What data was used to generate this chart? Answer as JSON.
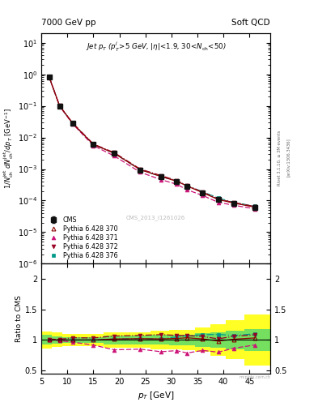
{
  "title_left": "7000 GeV pp",
  "title_right": "Soft QCD",
  "watermark": "CMS_2013_I1261026",
  "ylabel_ratio": "Ratio to CMS",
  "xlabel": "p_{T} [GeV]",
  "rivet_label": "Rivet 3.1.10, ≥ 3M events",
  "inspire_label": "[arXiv:1306.3436]",
  "cms_x": [
    6.5,
    8.5,
    11.0,
    15.0,
    19.0,
    24.0,
    28.0,
    31.0,
    33.0,
    36.0,
    39.0,
    42.0,
    46.0
  ],
  "cms_y": [
    0.82,
    0.1,
    0.028,
    0.006,
    0.0031,
    0.00093,
    0.00057,
    0.0004,
    0.00028,
    0.000175,
    0.00011,
    8.2e-05,
    6e-05
  ],
  "cms_yerr": [
    0.04,
    0.005,
    0.0015,
    0.0003,
    0.00015,
    5e-05,
    4e-05,
    3e-05,
    3e-05,
    2e-05,
    1.5e-05,
    1.2e-05,
    1e-05
  ],
  "py370_x": [
    6.5,
    8.5,
    11.0,
    15.0,
    19.0,
    24.0,
    28.0,
    31.0,
    33.0,
    36.0,
    39.0,
    42.0,
    46.0
  ],
  "py370_y": [
    0.82,
    0.1,
    0.028,
    0.006,
    0.00315,
    0.00095,
    0.00058,
    0.00041,
    0.00029,
    0.000178,
    0.000108,
    8.3e-05,
    6.2e-05
  ],
  "py371_x": [
    6.5,
    8.5,
    11.0,
    15.0,
    19.0,
    24.0,
    28.0,
    31.0,
    33.0,
    36.0,
    39.0,
    42.0,
    46.0
  ],
  "py371_y": [
    0.82,
    0.099,
    0.027,
    0.0055,
    0.0026,
    0.00079,
    0.00046,
    0.00033,
    0.00022,
    0.000145,
    8.8e-05,
    7.1e-05,
    5.5e-05
  ],
  "py372_x": [
    6.5,
    8.5,
    11.0,
    15.0,
    19.0,
    24.0,
    28.0,
    31.0,
    33.0,
    36.0,
    39.0,
    42.0,
    46.0
  ],
  "py372_y": [
    0.83,
    0.101,
    0.029,
    0.0062,
    0.0033,
    0.001,
    0.00062,
    0.00043,
    0.0003,
    0.000185,
    0.000112,
    8.7e-05,
    6.5e-05
  ],
  "py376_x": [
    6.5,
    8.5,
    11.0,
    15.0,
    19.0,
    24.0,
    28.0,
    31.0,
    33.0,
    36.0,
    39.0,
    42.0,
    46.0
  ],
  "py376_y": [
    0.82,
    0.1,
    0.028,
    0.006,
    0.00315,
    0.00095,
    0.00058,
    0.00042,
    0.0003,
    0.00019,
    0.00012,
    8.8e-05,
    6.6e-05
  ],
  "color_cms": "#111111",
  "color_370": "#8B0000",
  "color_371": "#CC1177",
  "color_372": "#990022",
  "color_376": "#009988",
  "ylim_main": [
    1e-06,
    20.0
  ],
  "ylim_ratio": [
    0.45,
    2.25
  ],
  "xlim": [
    5,
    49
  ],
  "band_edges": [
    5,
    7,
    9,
    12.5,
    17,
    21.5,
    26,
    29.5,
    32,
    34.5,
    37.5,
    40.5,
    44,
    49
  ],
  "band_green_half": [
    0.08,
    0.06,
    0.05,
    0.05,
    0.07,
    0.07,
    0.08,
    0.09,
    0.09,
    0.11,
    0.13,
    0.15,
    0.18
  ],
  "band_yellow_half": [
    0.14,
    0.12,
    0.1,
    0.1,
    0.13,
    0.13,
    0.15,
    0.16,
    0.17,
    0.2,
    0.26,
    0.32,
    0.42
  ]
}
